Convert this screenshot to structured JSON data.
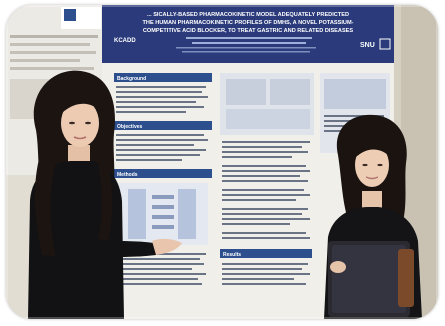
{
  "poster": {
    "title_lines": [
      "... SICALLY-BASED PHARMACOKINETIC MODEL ADEQUATELY PREDICTED",
      "THE HUMAN PHARMACOKINETIC PROFILES OF DMHS, A NOVEL POTASSIUM-",
      "COMPETITIVE ACID BLOCKER, TO TREAT GASTRIC AND RELATED DISEASES"
    ],
    "logo_left": "KCADD",
    "logo_right": "SNU",
    "sections": {
      "background": "Background",
      "objectives": "Objectives",
      "methods": "Methods",
      "results": "Results"
    }
  },
  "colors": {
    "poster_blue": "#2d4f8e",
    "poster_header": "#2a3a7a",
    "wall": "#d8d2c6"
  }
}
